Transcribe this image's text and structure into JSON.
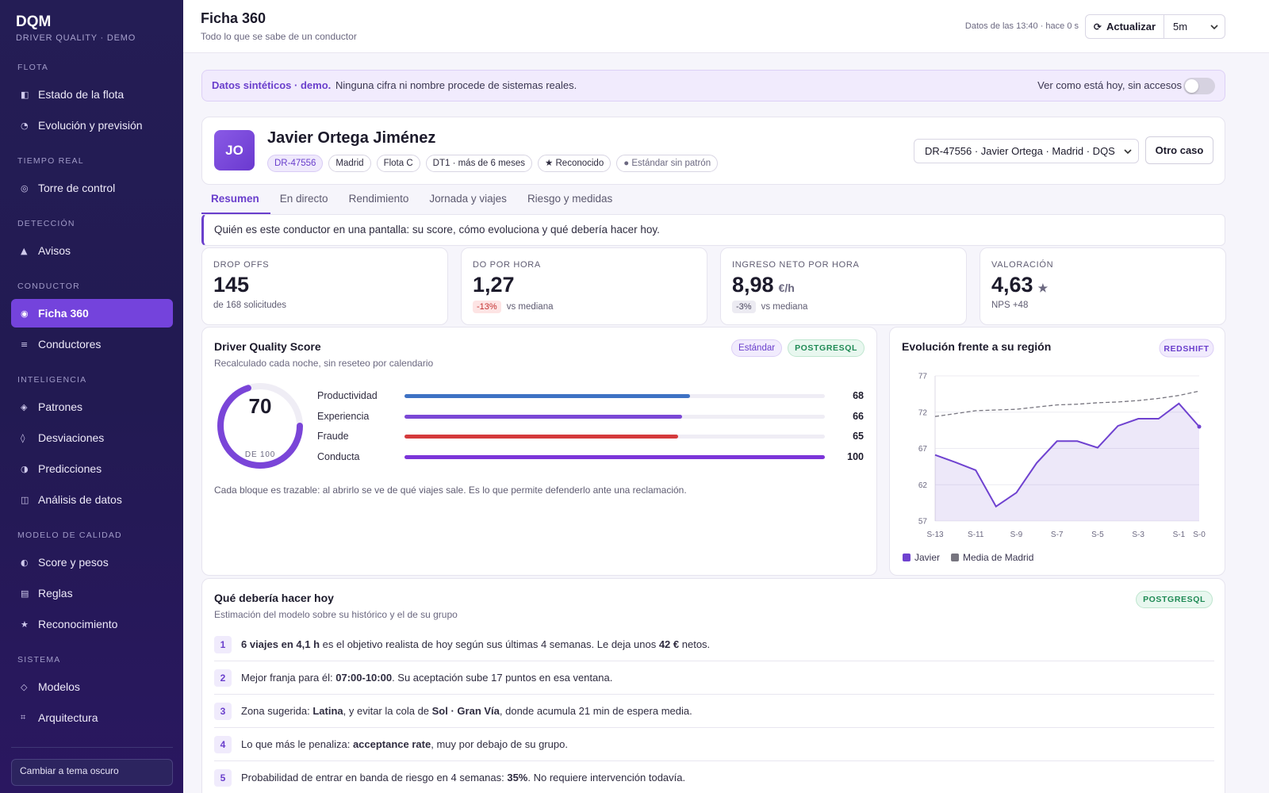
{
  "sidebar": {
    "brand": "DQM",
    "tagline": "DRIVER QUALITY · DEMO",
    "sections": [
      {
        "title": "FLOTA",
        "items": [
          {
            "icon": "◧",
            "label": "Estado de la flota"
          },
          {
            "icon": "◔",
            "label": "Evolución y previsión"
          }
        ]
      },
      {
        "title": "TIEMPO REAL",
        "items": [
          {
            "icon": "◎",
            "label": "Torre de control"
          }
        ]
      },
      {
        "title": "DETECCIÓN",
        "items": [
          {
            "icon": "▲",
            "label": "Avisos"
          }
        ]
      },
      {
        "title": "CONDUCTOR",
        "items": [
          {
            "icon": "◉",
            "label": "Ficha 360",
            "active": true
          },
          {
            "icon": "≡",
            "label": "Conductores"
          }
        ]
      },
      {
        "title": "INTELIGENCIA",
        "items": [
          {
            "icon": "◈",
            "label": "Patrones"
          },
          {
            "icon": "◊",
            "label": "Desviaciones"
          },
          {
            "icon": "◑",
            "label": "Predicciones"
          },
          {
            "icon": "◫",
            "label": "Análisis de datos"
          }
        ]
      },
      {
        "title": "MODELO DE CALIDAD",
        "items": [
          {
            "icon": "◐",
            "label": "Score y pesos"
          },
          {
            "icon": "▤",
            "label": "Reglas"
          },
          {
            "icon": "★",
            "label": "Reconocimiento"
          }
        ]
      },
      {
        "title": "SISTEMA",
        "items": [
          {
            "icon": "◇",
            "label": "Modelos"
          },
          {
            "icon": "⌗",
            "label": "Arquitectura"
          }
        ]
      }
    ],
    "theme_button": "Cambiar a tema oscuro"
  },
  "header": {
    "title": "Ficha 360",
    "subtitle": "Todo lo que se sabe de un conductor",
    "status": "Datos de las 13:40 · hace 0 s",
    "refresh_icon": "⟳",
    "refresh": "Actualizar",
    "interval": "5m"
  },
  "banner": {
    "strong": "Datos sintéticos · demo.",
    "text": "Ninguna cifra ni nombre procede de sistemas reales.",
    "toggle_label": "Ver como está hoy, sin accesos",
    "toggle_on": false
  },
  "driver": {
    "initials": "JO",
    "name": "Javier Ortega Jiménez",
    "tags": [
      {
        "text": "DR-47556",
        "style": "accent"
      },
      {
        "text": "Madrid"
      },
      {
        "text": "Flota C"
      },
      {
        "text": "DT1 · más de 6 meses"
      },
      {
        "text": "★ Reconocido"
      },
      {
        "text": "● Estándar sin patrón",
        "style": "muted"
      }
    ],
    "selector": "DR-47556 · Javier Ortega · Madrid · DQS",
    "other_case": "Otro caso"
  },
  "tabs": [
    {
      "label": "Resumen",
      "active": true
    },
    {
      "label": "En directo"
    },
    {
      "label": "Rendimiento"
    },
    {
      "label": "Jornada y viajes"
    },
    {
      "label": "Riesgo y medidas"
    }
  ],
  "intro": "Quién es este conductor en una pantalla: su score, cómo evoluciona y qué debería hacer hoy.",
  "kpis": [
    {
      "label": "DROP OFFS",
      "value": "145",
      "note": "de 168 solicitudes"
    },
    {
      "label": "DO POR HORA",
      "value": "1,27",
      "delta": "-13%",
      "tone": "negative",
      "note": "vs mediana"
    },
    {
      "label": "INGRESO NETO POR HORA",
      "value": "8,98",
      "unit": "€/h",
      "delta": "-3%",
      "tone": "neutral",
      "note": "vs mediana"
    },
    {
      "label": "VALORACIÓN",
      "value": "4,63",
      "unit": "★",
      "note": "NPS +48"
    }
  ],
  "score": {
    "title": "Driver Quality Score",
    "subtitle": "Recalculado cada noche, sin reseteo por calendario",
    "badges": [
      {
        "text": "Estándar",
        "style": "purple"
      },
      {
        "text": "POSTGRESQL",
        "style": "green"
      }
    ],
    "value": 70,
    "max": {
      "value": 100,
      "label": "DE 100"
    },
    "color": "#7a45d8",
    "bars": [
      {
        "name": "Productividad",
        "value": 68,
        "color": "#3e72c4"
      },
      {
        "name": "Experiencia",
        "value": 66,
        "color": "#7b48d6"
      },
      {
        "name": "Fraude",
        "value": 65,
        "color": "#d43a3c"
      },
      {
        "name": "Conducta",
        "value": 100,
        "color": "#7c35d9"
      }
    ],
    "footnote": "Cada bloque es trazable: al abrirlo se ve de qué viajes sale. Es lo que permite defenderlo ante una reclamación."
  },
  "evolution_chart": {
    "type": "line",
    "title": "Evolución frente a su región",
    "badge": "REDSHIFT",
    "categories": [
      "S-13",
      null,
      "S-11",
      null,
      "S-9",
      null,
      "S-7",
      null,
      "S-5",
      null,
      "S-3",
      null,
      "S-1",
      "S-0"
    ],
    "series": [
      {
        "name": "Javier",
        "color": "#6f42d0",
        "area": true,
        "values": [
          66.1,
          65.1,
          64.0,
          59.0,
          60.9,
          65.0,
          68.0,
          68.0,
          67.1,
          70.1,
          71.1,
          71.1,
          73.2,
          70.0
        ]
      },
      {
        "name": "Media de Madrid",
        "color": "#77757f",
        "dashed": true,
        "values": [
          71.4,
          71.8,
          72.2,
          72.3,
          72.4,
          72.7,
          73.0,
          73.1,
          73.3,
          73.4,
          73.6,
          73.9,
          74.3,
          74.9
        ]
      }
    ],
    "ylim": [
      57,
      77
    ],
    "yticks": [
      57,
      62,
      67,
      72,
      77
    ],
    "grid": true,
    "legend": "bottom"
  },
  "recommendations": {
    "title": "Qué debería hacer hoy",
    "subtitle": "Estimación del modelo sobre su histórico y el de su grupo",
    "badge": "POSTGRESQL",
    "items": [
      {
        "n": 1,
        "parts": [
          {
            "t": "6 viajes en 4,1 h",
            "b": true
          },
          {
            "t": " es el objetivo realista de hoy según sus últimas 4 semanas. Le deja unos "
          },
          {
            "t": "42 €",
            "b": true
          },
          {
            "t": " netos."
          }
        ]
      },
      {
        "n": 2,
        "parts": [
          {
            "t": "Mejor franja para él: "
          },
          {
            "t": "07:00-10:00",
            "b": true
          },
          {
            "t": ". Su aceptación sube 17 puntos en esa ventana."
          }
        ]
      },
      {
        "n": 3,
        "parts": [
          {
            "t": "Zona sugerida: "
          },
          {
            "t": "Latina",
            "b": true
          },
          {
            "t": ", y evitar la cola de "
          },
          {
            "t": "Sol · Gran Vía",
            "b": true
          },
          {
            "t": ", donde acumula 21 min de espera media."
          }
        ]
      },
      {
        "n": 4,
        "parts": [
          {
            "t": "Lo que más le penaliza: "
          },
          {
            "t": "acceptance rate",
            "b": true
          },
          {
            "t": ", muy por debajo de su grupo."
          }
        ]
      },
      {
        "n": 5,
        "parts": [
          {
            "t": "Probabilidad de entrar en banda de riesgo en 4 semanas: "
          },
          {
            "t": "35%",
            "b": true
          },
          {
            "t": ". No requiere intervención todavía."
          }
        ]
      }
    ]
  }
}
